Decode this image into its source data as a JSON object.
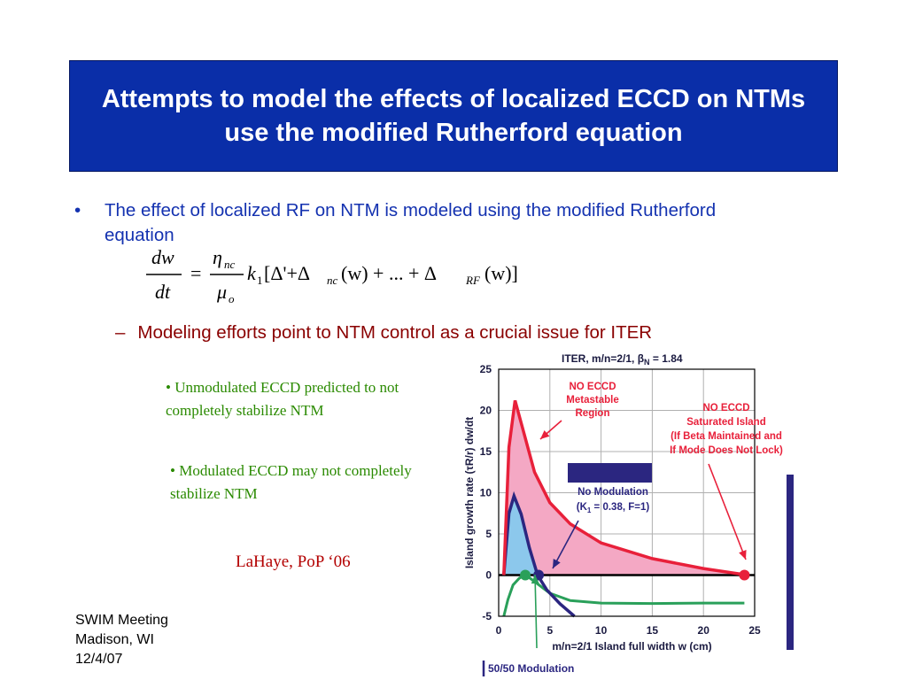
{
  "slide": {
    "title": "Attempts to model the effects of localized ECCD on NTMs use the modified Rutherford equation",
    "bullet1": "The effect of localized RF on NTM is modeled using the modified Rutherford equation",
    "bullet_marker": "•",
    "sub_bullet_marker": "–",
    "sub_bullet": "Modeling efforts point to NTM control as a crucial issue for ITER",
    "note1": "• Unmodulated ECCD predicted to not completely stabilize NTM",
    "note2": "• Modulated ECCD may not completely stabilize NTM",
    "citation": "LaHaye, PoP ‘06",
    "footer": {
      "line1": "SWIM Meeting",
      "line2": "Madison, WI",
      "line3": "12/4/07"
    },
    "colors": {
      "title_bg": "#0a2ea8",
      "bullet_text": "#1432b0",
      "sub_bullet_text": "#8a0000",
      "note_text": "#2a8a00",
      "citation_text": "#b30000"
    }
  },
  "equation": {
    "lhs_num": "dw",
    "lhs_den": "dt",
    "equals": "=",
    "eta": "η",
    "eta_sub": "nc",
    "mu": "μ",
    "mu_sub": "o",
    "k": "k",
    "k_sub": "1",
    "body_a": "[Δ'+Δ",
    "sub_nc": "nc",
    "body_b": "(w) + ... + Δ",
    "sub_rf": "RF",
    "body_c": "(w)]"
  },
  "chart_data": {
    "type": "line",
    "title": "ITER, m/n=2/1, β",
    "title_sub": "N",
    "title_tail": " = 1.84",
    "xlabel": "m/n=2/1 Island full width w (cm)",
    "ylabel": "Island growth rate (τR/r) dw/dt",
    "xlim": [
      0,
      25
    ],
    "ylim": [
      -5,
      25
    ],
    "xticks": [
      "0",
      "5",
      "10",
      "15",
      "20",
      "25"
    ],
    "yticks": [
      "-5",
      "0",
      "5",
      "10",
      "15",
      "20",
      "25"
    ],
    "grid": true,
    "series": [
      {
        "name": "NO ECCD",
        "color": "#e8203a",
        "fill": "#f4a8c4",
        "points": [
          [
            0.5,
            0
          ],
          [
            1.0,
            15.5
          ],
          [
            1.6,
            21.2
          ],
          [
            2.3,
            18
          ],
          [
            3.5,
            12.5
          ],
          [
            5,
            8.8
          ],
          [
            7,
            6.2
          ],
          [
            10,
            3.9
          ],
          [
            15,
            2.0
          ],
          [
            20,
            0.8
          ],
          [
            24,
            0.05
          ]
        ]
      },
      {
        "name": "No Modulation (K1 = 0.38, F=1)",
        "color": "#2b2680",
        "fill": "#8cc8ec",
        "points": [
          [
            0.5,
            0
          ],
          [
            1.0,
            7.5
          ],
          [
            1.5,
            9.6
          ],
          [
            2.2,
            7.4
          ],
          [
            3.0,
            3.3
          ],
          [
            3.8,
            0
          ],
          [
            4.7,
            -1.8
          ],
          [
            6.0,
            -3.5
          ],
          [
            7.4,
            -5
          ]
        ]
      },
      {
        "name": "50/50 Modulation",
        "color": "#2aa05a",
        "points": [
          [
            0.5,
            -5
          ],
          [
            0.9,
            -3
          ],
          [
            1.4,
            -1.2
          ],
          [
            2.0,
            -0.4
          ],
          [
            2.6,
            0.05
          ],
          [
            3.3,
            -0.6
          ],
          [
            5,
            -2.2
          ],
          [
            7,
            -3.1
          ],
          [
            10,
            -3.4
          ],
          [
            15,
            -3.45
          ],
          [
            20,
            -3.4
          ],
          [
            24,
            -3.4
          ]
        ]
      },
      {
        "name": "Zero growth reference",
        "color": "#000000",
        "points": [
          [
            0,
            0
          ],
          [
            25,
            0
          ]
        ]
      }
    ],
    "markers": [
      {
        "x": 24,
        "y": 0,
        "color": "#e8203a"
      },
      {
        "x": 3.9,
        "y": 0,
        "color": "#2b2680"
      },
      {
        "x": 2.6,
        "y": 0,
        "color": "#2aa05a"
      }
    ],
    "annotations": {
      "metastable": [
        "NO ECCD",
        "Metastable",
        "Region"
      ],
      "saturated": [
        "NO ECCD",
        "Saturated Island",
        "(If Beta Maintained and",
        "If Mode Does Not Lock)"
      ],
      "no_modulation": [
        "No Modulation",
        "(K",
        "1",
        " = 0.38, F=1)"
      ],
      "fifty_fifty": "50/50 Modulation"
    }
  }
}
